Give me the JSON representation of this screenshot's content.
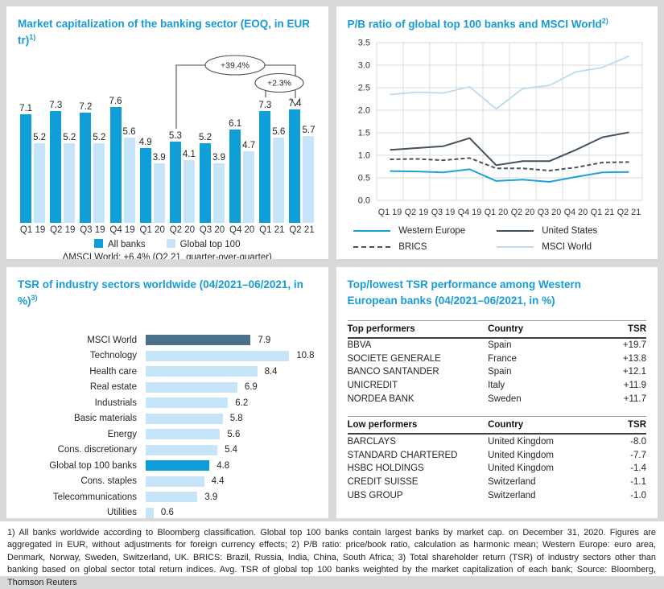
{
  "colors": {
    "accent": "#189bd8",
    "all_banks_bar": "#0f9ed8",
    "top100_bar": "#c7e5f8",
    "msci_slate": "#4a7189",
    "western_europe_line": "#1ba3d8",
    "united_states_line": "#42525f",
    "brics_line": "#4b5560",
    "msci_world_line": "#bedcf0",
    "grid": "#d9d9d9",
    "background": "#d9d9d9"
  },
  "panels": {
    "market_cap": {
      "title": "Market capitalization of the banking sector (EOQ, in EUR tr)",
      "sup": "1)",
      "annotations": {
        "big": "+39.4%",
        "small": "+2.3%"
      },
      "legend": {
        "all_banks": "All banks",
        "top100": "Global top 100"
      },
      "delta_note": "ΔMSCI World: +6.4% (Q2 21, quarter-over-quarter)"
    },
    "pb_ratio": {
      "title": "P/B ratio of global top 100 banks and MSCI World",
      "sup": "2)"
    },
    "tsr_sectors": {
      "title": "TSR of industry sectors worldwide (04/2021–06/2021, in %)",
      "sup": "3)"
    },
    "tsr_table": {
      "title": "Top/lowest TSR performance among Western European banks (04/2021–06/2021, in %)"
    }
  },
  "chart_data": [
    {
      "id": "market_cap",
      "type": "bar",
      "title": "Market capitalization of the banking sector (EOQ, in EUR tr)",
      "categories": [
        "Q1 19",
        "Q2 19",
        "Q3 19",
        "Q4 19",
        "Q1 20",
        "Q2 20",
        "Q3 20",
        "Q4 20",
        "Q1 21",
        "Q2 21"
      ],
      "series": [
        {
          "name": "All banks",
          "color": "#0f9ed8",
          "values": [
            7.1,
            7.3,
            7.2,
            7.6,
            4.9,
            5.3,
            5.2,
            6.1,
            7.3,
            7.4
          ]
        },
        {
          "name": "Global top 100",
          "color": "#c7e5f8",
          "values": [
            5.2,
            5.2,
            5.2,
            5.6,
            3.9,
            4.1,
            3.9,
            4.7,
            5.6,
            5.7
          ]
        }
      ],
      "annotations": [
        "+39.4% (Q2 20 to Q2 21, All banks)",
        "+2.3% (Q1 21 to Q2 21, All banks)"
      ],
      "ylim": [
        0,
        8
      ],
      "grid": false
    },
    {
      "id": "pb_ratio",
      "type": "line",
      "title": "P/B ratio of global top 100 banks and MSCI World",
      "x": [
        "Q1 19",
        "Q2 19",
        "Q3 19",
        "Q4 19",
        "Q1 20",
        "Q2 20",
        "Q3 20",
        "Q4 20",
        "Q1 21",
        "Q2 21"
      ],
      "ylim": [
        0,
        3.5
      ],
      "ytick_step": 0.5,
      "grid": true,
      "legend_position": "bottom",
      "series": [
        {
          "name": "Western Europe",
          "color": "#1ba3d8",
          "dash": false,
          "values": [
            0.65,
            0.64,
            0.62,
            0.69,
            0.43,
            0.46,
            0.41,
            0.52,
            0.62,
            0.63
          ]
        },
        {
          "name": "United States",
          "color": "#42525f",
          "dash": false,
          "values": [
            1.12,
            1.16,
            1.2,
            1.38,
            0.78,
            0.87,
            0.87,
            1.12,
            1.4,
            1.51
          ]
        },
        {
          "name": "BRICS",
          "color": "#4b5560",
          "dash": true,
          "values": [
            0.91,
            0.92,
            0.89,
            0.94,
            0.71,
            0.71,
            0.66,
            0.73,
            0.84,
            0.85
          ]
        },
        {
          "name": "MSCI World",
          "color": "#bedcf0",
          "dash": false,
          "values": [
            2.35,
            2.4,
            2.38,
            2.52,
            2.03,
            2.48,
            2.55,
            2.85,
            2.95,
            3.2
          ]
        }
      ]
    },
    {
      "id": "tsr_sectors",
      "type": "bar",
      "orientation": "horizontal",
      "title": "TSR of industry sectors worldwide (04/2021–06/2021, in %)",
      "xlim": [
        0,
        12
      ],
      "items": [
        {
          "label": "MSCI World",
          "value": 7.9,
          "color": "#4a7189"
        },
        {
          "label": "Technology",
          "value": 10.8,
          "color": "#c7e5f8"
        },
        {
          "label": "Health care",
          "value": 8.4,
          "color": "#c7e5f8"
        },
        {
          "label": "Real estate",
          "value": 6.9,
          "color": "#c7e5f8"
        },
        {
          "label": "Industrials",
          "value": 6.2,
          "color": "#c7e5f8"
        },
        {
          "label": "Basic materials",
          "value": 5.8,
          "color": "#c7e5f8"
        },
        {
          "label": "Energy",
          "value": 5.6,
          "color": "#c7e5f8"
        },
        {
          "label": "Cons. discretionary",
          "value": 5.4,
          "color": "#c7e5f8"
        },
        {
          "label": "Global top 100 banks",
          "value": 4.8,
          "color": "#0f9ed8"
        },
        {
          "label": "Cons. staples",
          "value": 4.4,
          "color": "#c7e5f8"
        },
        {
          "label": "Telecommunications",
          "value": 3.9,
          "color": "#c7e5f8"
        },
        {
          "label": "Utilities",
          "value": 0.6,
          "color": "#c7e5f8"
        }
      ]
    },
    {
      "id": "tsr_table",
      "type": "table",
      "title": "Top/lowest TSR performance among Western European banks (04/2021–06/2021, in %)",
      "tables": [
        {
          "headers": [
            "Top performers",
            "Country",
            "TSR"
          ],
          "rows": [
            [
              "BBVA",
              "Spain",
              "+19.7"
            ],
            [
              "SOCIETE GENERALE",
              "France",
              "+13.8"
            ],
            [
              "BANCO SANTANDER",
              "Spain",
              "+12.1"
            ],
            [
              "UNICREDIT",
              "Italy",
              "+11.9"
            ],
            [
              "NORDEA BANK",
              "Sweden",
              "+11.7"
            ]
          ]
        },
        {
          "headers": [
            "Low performers",
            "Country",
            "TSR"
          ],
          "rows": [
            [
              "BARCLAYS",
              "United Kingdom",
              "-8.0"
            ],
            [
              "STANDARD CHARTERED",
              "United Kingdom",
              "-7.7"
            ],
            [
              "HSBC HOLDINGS",
              "United Kingdom",
              "-1.4"
            ],
            [
              "CREDIT SUISSE",
              "Switzerland",
              "-1.1"
            ],
            [
              "UBS GROUP",
              "Switzerland",
              "-1.0"
            ]
          ]
        }
      ]
    }
  ],
  "footnote": "1) All banks worldwide according to Bloomberg classification. Global top 100 banks contain largest banks by market cap. on December 31, 2020. Figures are aggregated in EUR, without adjustments for foreign currency effects; 2) P/B ratio: price/book ratio, calculation as harmonic mean; Western Europe: euro area, Denmark, Norway, Sweden, Switzerland, UK. BRICS: Brazil, Russia, India, China, South Africa; 3) Total shareholder return (TSR) of industry sectors other than banking based on global sector total return indices. Avg. TSR of global top 100 banks weighted by the market capitalization of each bank; Source: Bloomberg, Thomson Reuters"
}
